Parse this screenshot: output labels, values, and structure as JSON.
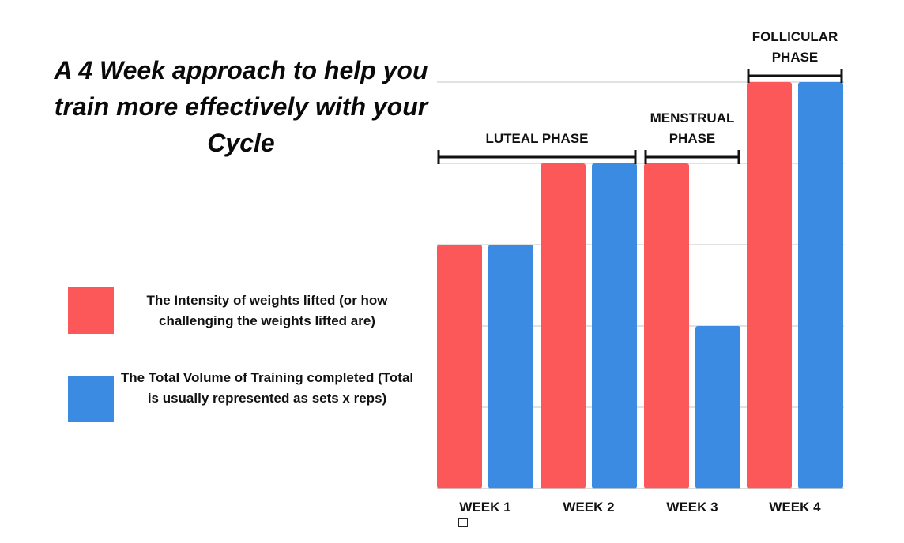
{
  "title": "A 4 Week approach to help you train more effectively with your Cycle",
  "legend": [
    {
      "label": "The Intensity of weights lifted (or how challenging the weights lifted are)",
      "color": "#fc585a"
    },
    {
      "label": "The Total Volume of Training completed (Total is usually represented as sets x reps)",
      "color": "#3b8be2"
    }
  ],
  "chart_data": {
    "type": "bar",
    "categories": [
      "WEEK 1",
      "WEEK 2",
      "WEEK 3",
      "WEEK 4"
    ],
    "series": [
      {
        "values": [
          3,
          4,
          4,
          5
        ],
        "color": "#fc585a"
      },
      {
        "values": [
          3,
          4,
          2,
          5
        ],
        "color": "#3b8be2"
      }
    ],
    "ylim": [
      0,
      5
    ],
    "grid": true,
    "phases": [
      {
        "label": "LUTEAL PHASE",
        "start_category": 0,
        "end_category": 1
      },
      {
        "label": "MENSTRUAL\nPHASE",
        "start_category": 2,
        "end_category": 2
      },
      {
        "label": "FOLLICULAR\nPHASE",
        "start_category": 3,
        "end_category": 3
      }
    ]
  }
}
